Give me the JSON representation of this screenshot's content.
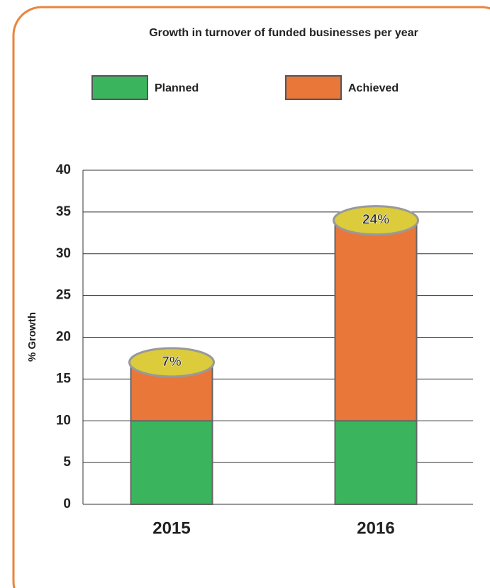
{
  "chart_data": {
    "type": "bar",
    "stacked": true,
    "title": "Growth in turnover of funded businesses per year",
    "y_label": "% Growth",
    "categories": [
      "2015",
      "2016"
    ],
    "series": [
      {
        "name": "Planned",
        "color": "#3bb55d",
        "values": [
          10,
          10
        ]
      },
      {
        "name": "Achieved",
        "color": "#e9773a",
        "values": [
          7,
          24
        ],
        "value_labels": [
          "7%",
          "24%"
        ]
      }
    ],
    "ylim": [
      0,
      40
    ],
    "yticks": [
      0,
      5,
      10,
      15,
      20,
      25,
      30,
      35,
      40
    ],
    "grid": true
  }
}
